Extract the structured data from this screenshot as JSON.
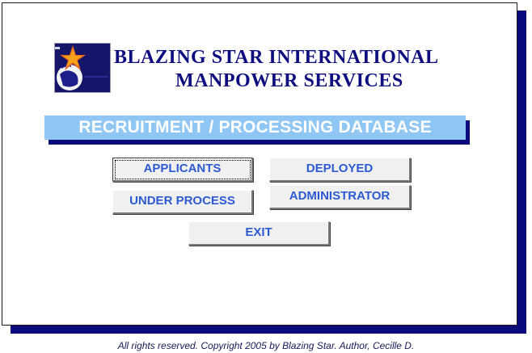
{
  "company": {
    "name_line1": "BLAZING STAR INTERNATIONAL",
    "name_line2": "MANPOWER SERVICES"
  },
  "banner": {
    "title": "RECRUITMENT / PROCESSING DATABASE"
  },
  "menu": {
    "applicants_label": "APPLICANTS",
    "deployed_label": "DEPLOYED",
    "under_process_label": "UNDER PROCESS",
    "administrator_label": "ADMINISTRATOR",
    "exit_label": "EXIT"
  },
  "footer": {
    "text": "All rights reserved.  Copyright 2005 by Blazing Star.  Author, Cecille D."
  },
  "colors": {
    "panel_shadow": "#0a0a7a",
    "company_text": "#0d0d80",
    "banner_bg": "#8fc6f4",
    "button_text": "#2d5ad2"
  },
  "icons": {
    "logo": "star-globe-logo-icon"
  }
}
